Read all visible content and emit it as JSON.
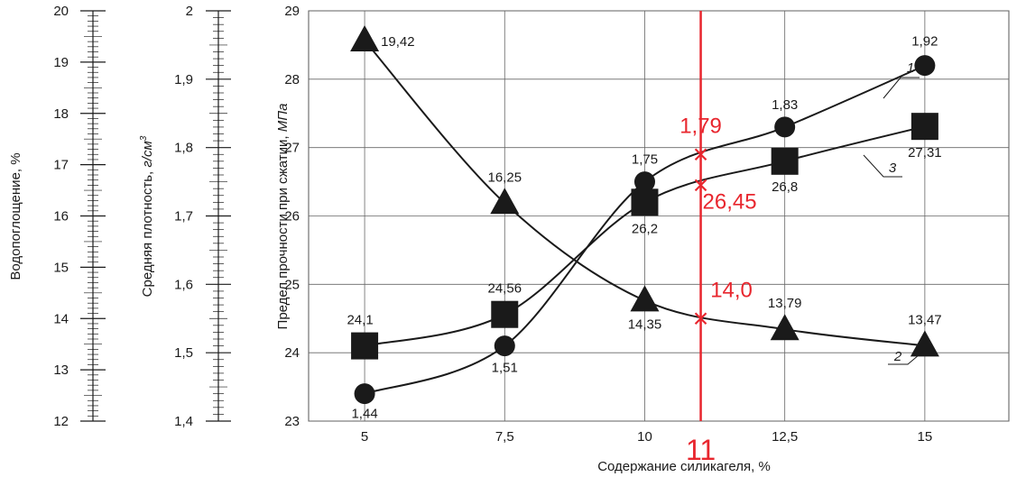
{
  "chart_data": {
    "type": "line",
    "xlabel": "Содержание силикагеля, %",
    "x_ticks": [
      "5",
      "7,5",
      "10",
      "11",
      "12,5",
      "15"
    ],
    "x": [
      5,
      7.5,
      10,
      12.5,
      15
    ],
    "xlim": [
      4,
      16.5
    ],
    "axes": [
      {
        "label": "Водопоглощение, %",
        "ylim": [
          12,
          20
        ],
        "ticks": [
          "12",
          "13",
          "14",
          "15",
          "16",
          "17",
          "18",
          "19",
          "20"
        ]
      },
      {
        "label_prefix": "Средняя плотность, ",
        "label_unit": "г/см",
        "label_sup": "3",
        "ylim": [
          1.4,
          2.0
        ],
        "ticks": [
          "1,4",
          "1,5",
          "1,6",
          "1,7",
          "1,8",
          "1,9",
          "2"
        ]
      },
      {
        "label_prefix": "Предел прочности при сжатии, ",
        "label_unit": "МПа",
        "ylim": [
          23,
          29
        ],
        "ticks": [
          "23",
          "24",
          "25",
          "26",
          "27",
          "28",
          "29"
        ]
      }
    ],
    "series": [
      {
        "curve_number": "1",
        "marker": "circle",
        "axis": "Средняя плотность, г/см3",
        "values": [
          1.44,
          1.51,
          1.75,
          1.83,
          1.92
        ],
        "labels": [
          "1,44",
          "1,51",
          "1,75",
          "1,83",
          "1,92"
        ]
      },
      {
        "curve_number": "2",
        "marker": "triangle",
        "axis": "Водопоглощение, %",
        "values": [
          19.42,
          16.25,
          14.35,
          13.79,
          13.47
        ],
        "labels": [
          "19,42",
          "16,25",
          "14,35",
          "13,79",
          "13,47"
        ]
      },
      {
        "curve_number": "3",
        "marker": "square",
        "axis": "Предел прочности при сжатии, МПа",
        "values": [
          24.1,
          24.56,
          26.2,
          26.8,
          27.31
        ],
        "labels": [
          "24,1",
          "24,56",
          "26,2",
          "26,8",
          "27,31"
        ]
      }
    ],
    "marker_line": {
      "x": 11,
      "label": "11",
      "color": "#e8262e",
      "annotations": [
        {
          "series": "1",
          "value": 1.79,
          "label": "1,79"
        },
        {
          "series": "3",
          "value": 26.45,
          "label": "26,45"
        },
        {
          "series": "2",
          "value": 14.0,
          "label": "14,0"
        }
      ]
    },
    "grid": true,
    "line_color": "#1a1a1a"
  }
}
